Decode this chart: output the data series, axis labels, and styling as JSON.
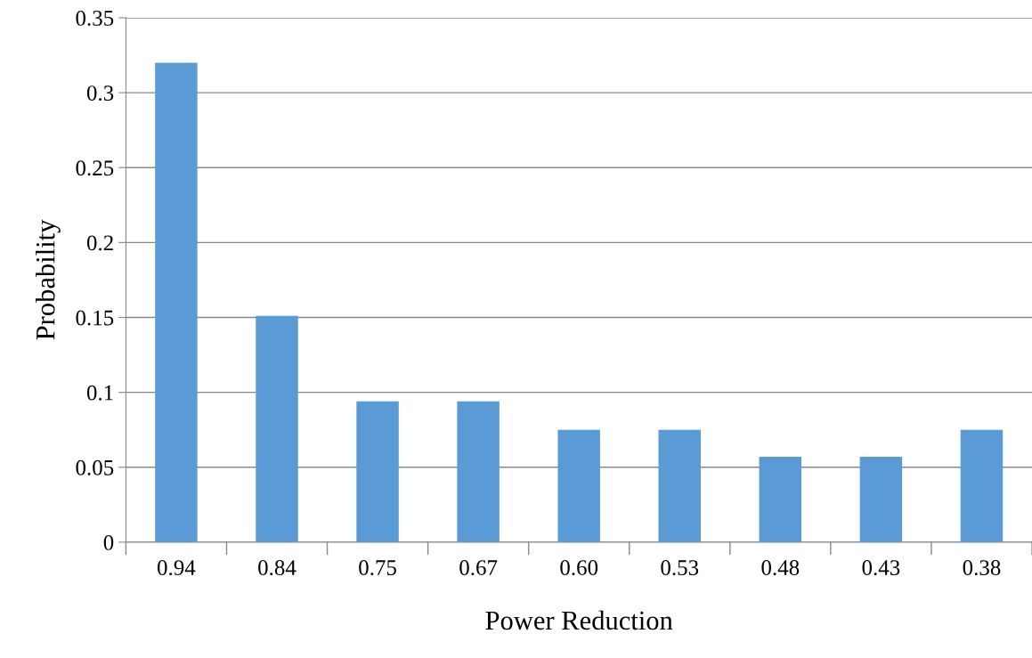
{
  "chart_data": {
    "type": "bar",
    "xlabel": "Power Reduction",
    "ylabel": "Probability",
    "categories": [
      "0.94",
      "0.84",
      "0.75",
      "0.67",
      "0.60",
      "0.53",
      "0.48",
      "0.43",
      "0.38"
    ],
    "values": [
      0.32,
      0.151,
      0.094,
      0.094,
      0.075,
      0.075,
      0.057,
      0.057,
      0.075
    ],
    "color": "#5b9bd5",
    "ylim": [
      0,
      0.35
    ],
    "yticks": [
      0,
      0.05,
      0.1,
      0.15,
      0.2,
      0.25,
      0.3,
      0.35
    ],
    "grid": "y",
    "legend": false
  }
}
